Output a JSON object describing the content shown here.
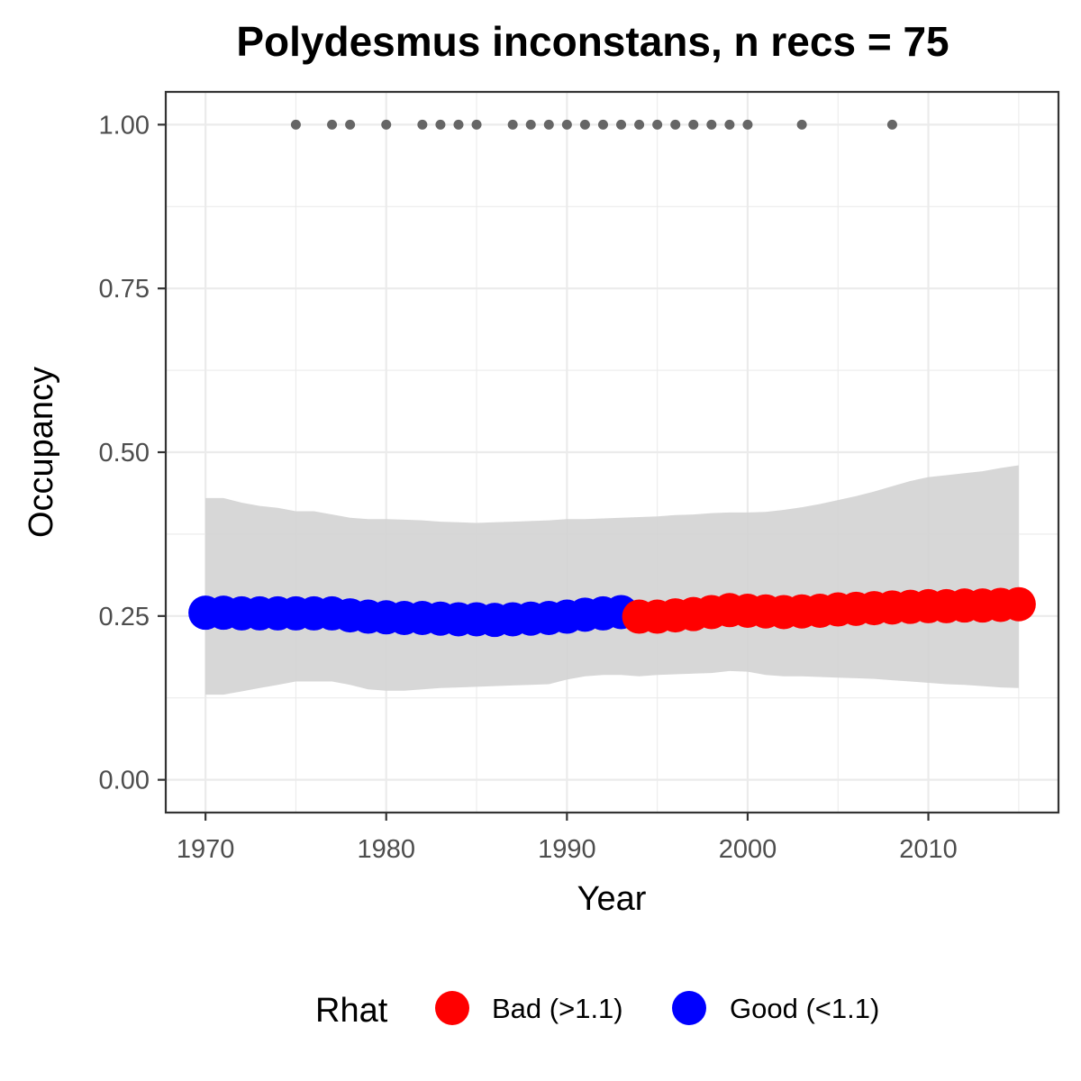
{
  "chart_data": {
    "type": "line",
    "title": "Polydesmus inconstans, n recs = 75",
    "xlabel": "Year",
    "ylabel": "Occupancy",
    "xlim": [
      1967.8,
      2017.2
    ],
    "ylim": [
      -0.05,
      1.05
    ],
    "x_ticks": [
      1970,
      1980,
      1990,
      2000,
      2010
    ],
    "x_tick_labels": [
      "1970",
      "1980",
      "1990",
      "2000",
      "2010"
    ],
    "y_ticks": [
      0,
      0.25,
      0.5,
      0.75,
      1.0
    ],
    "y_tick_labels": [
      "0.00",
      "0.25",
      "0.50",
      "0.75",
      "1.00"
    ],
    "grid": true,
    "colors": {
      "bad": "#ff0000",
      "good": "#0000ff",
      "ribbon": "#d3d3d3",
      "records": "#666666",
      "grid": "#ebebeb",
      "panel_border": "#333333"
    },
    "legend": {
      "title": "Rhat",
      "position": "bottom",
      "entries": [
        {
          "key": "bad",
          "label": "Bad (>1.1)"
        },
        {
          "key": "good",
          "label": "Good (<1.1)"
        }
      ]
    },
    "x": [
      1970,
      1971,
      1972,
      1973,
      1974,
      1975,
      1976,
      1977,
      1978,
      1979,
      1980,
      1981,
      1982,
      1983,
      1984,
      1985,
      1986,
      1987,
      1988,
      1989,
      1990,
      1991,
      1992,
      1993,
      1994,
      1995,
      1996,
      1997,
      1998,
      1999,
      2000,
      2001,
      2002,
      2003,
      2004,
      2005,
      2006,
      2007,
      2008,
      2009,
      2010,
      2011,
      2012,
      2013,
      2014,
      2015
    ],
    "occupancy": [
      0.255,
      0.255,
      0.254,
      0.254,
      0.254,
      0.254,
      0.254,
      0.254,
      0.251,
      0.249,
      0.248,
      0.247,
      0.247,
      0.246,
      0.245,
      0.245,
      0.244,
      0.245,
      0.246,
      0.247,
      0.249,
      0.252,
      0.254,
      0.256,
      0.249,
      0.249,
      0.251,
      0.253,
      0.256,
      0.259,
      0.258,
      0.257,
      0.256,
      0.257,
      0.258,
      0.26,
      0.261,
      0.262,
      0.263,
      0.264,
      0.265,
      0.265,
      0.266,
      0.266,
      0.267,
      0.268
    ],
    "lower": [
      0.13,
      0.13,
      0.135,
      0.14,
      0.145,
      0.15,
      0.15,
      0.15,
      0.145,
      0.138,
      0.136,
      0.136,
      0.138,
      0.14,
      0.141,
      0.142,
      0.143,
      0.144,
      0.145,
      0.146,
      0.153,
      0.158,
      0.16,
      0.16,
      0.158,
      0.16,
      0.161,
      0.162,
      0.163,
      0.166,
      0.165,
      0.16,
      0.158,
      0.158,
      0.157,
      0.156,
      0.155,
      0.154,
      0.152,
      0.15,
      0.148,
      0.146,
      0.145,
      0.143,
      0.141,
      0.14
    ],
    "upper": [
      0.43,
      0.43,
      0.423,
      0.418,
      0.415,
      0.41,
      0.41,
      0.405,
      0.4,
      0.398,
      0.398,
      0.397,
      0.396,
      0.394,
      0.393,
      0.392,
      0.393,
      0.394,
      0.395,
      0.396,
      0.398,
      0.398,
      0.399,
      0.4,
      0.401,
      0.402,
      0.404,
      0.405,
      0.407,
      0.408,
      0.408,
      0.409,
      0.412,
      0.416,
      0.421,
      0.427,
      0.433,
      0.44,
      0.448,
      0.456,
      0.462,
      0.465,
      0.468,
      0.471,
      0.476,
      0.48
    ],
    "rhat": [
      "good",
      "good",
      "good",
      "good",
      "good",
      "good",
      "good",
      "good",
      "good",
      "good",
      "good",
      "good",
      "good",
      "good",
      "good",
      "good",
      "good",
      "good",
      "good",
      "good",
      "good",
      "good",
      "good",
      "good",
      "bad",
      "bad",
      "bad",
      "bad",
      "bad",
      "bad",
      "bad",
      "bad",
      "bad",
      "bad",
      "bad",
      "bad",
      "bad",
      "bad",
      "bad",
      "bad",
      "bad",
      "bad",
      "bad",
      "bad",
      "bad",
      "bad"
    ],
    "record_years": [
      1975,
      1977,
      1978,
      1980,
      1982,
      1983,
      1984,
      1985,
      1987,
      1988,
      1989,
      1990,
      1991,
      1992,
      1993,
      1994,
      1995,
      1996,
      1997,
      1998,
      1999,
      2000,
      2003,
      2008
    ],
    "record_value": 1.0
  }
}
